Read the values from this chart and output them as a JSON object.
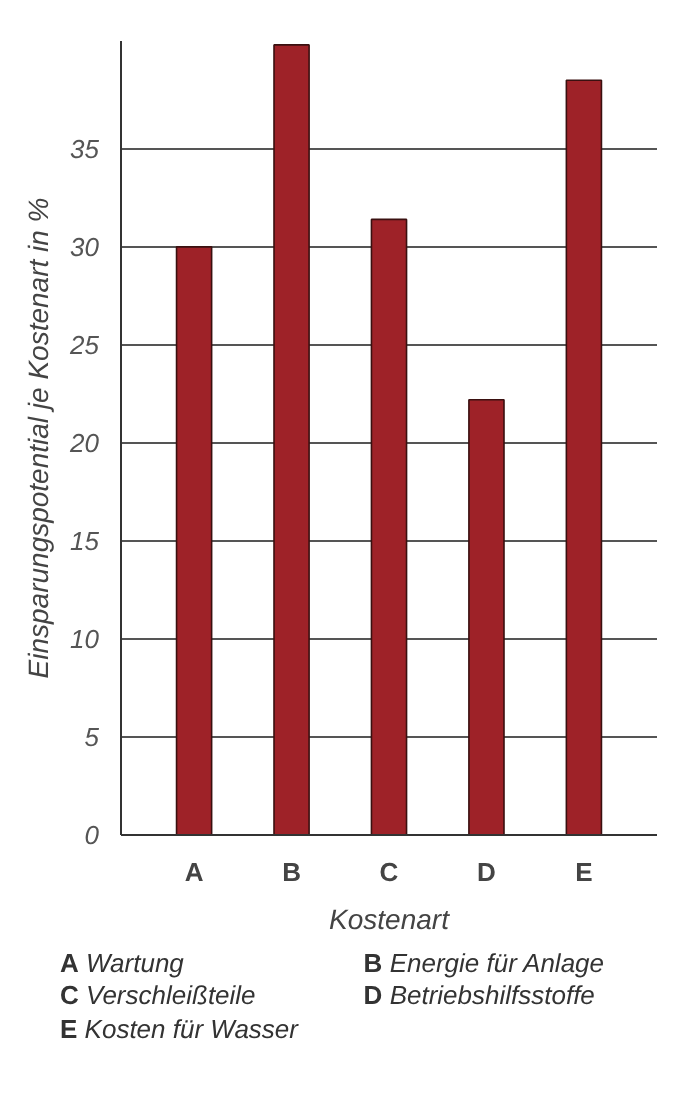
{
  "chart_data": {
    "type": "bar",
    "xlabel": "Kostenart",
    "ylabel": "Einsparungspotential je Kostenart in %",
    "categories": [
      "A",
      "B",
      "C",
      "D",
      "E"
    ],
    "values": [
      30,
      40.3,
      31.4,
      22.2,
      38.5
    ],
    "color": "#9e2228",
    "ylim": [
      0,
      40.5
    ],
    "yticks": [
      0,
      5,
      10,
      15,
      20,
      25,
      30,
      35
    ],
    "grid": "y",
    "annotations": [
      "A Wartung",
      "B Energie für Anlage",
      "C Verschleißteile",
      "D Betriebshilfsstoffe",
      "E Kosten für Wasser"
    ]
  }
}
